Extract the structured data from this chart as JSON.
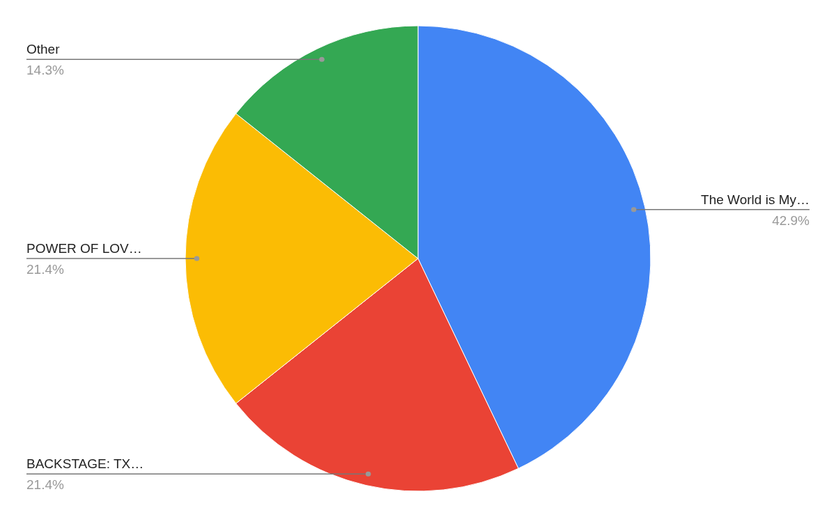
{
  "chart_data": {
    "type": "pie",
    "categories": [
      "The World is My…",
      "BACKSTAGE: TX…",
      "POWER OF LOV…",
      "Other"
    ],
    "values": [
      42.9,
      21.4,
      21.4,
      14.3
    ],
    "colors": [
      "#4285f4",
      "#ea4335",
      "#fbbc04",
      "#34a853"
    ],
    "value_labels": [
      "42.9%",
      "21.4%",
      "21.4%",
      "14.3%"
    ]
  }
}
